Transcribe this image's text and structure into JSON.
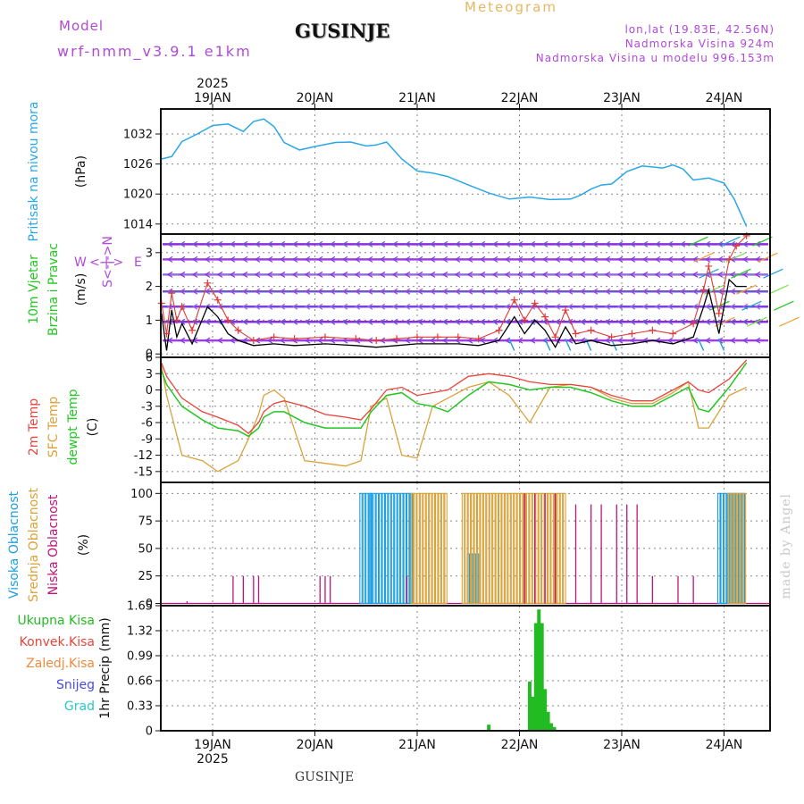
{
  "header": {
    "model_label": "Model",
    "model_name": "wrf-nmm_v3.9.1 e1km",
    "station": "GUSINJE",
    "title": "Meteogram",
    "lonlat": "lon,lat (19.83E, 42.56N)",
    "elevation": "Nadmorska Visina 924m",
    "model_elevation": "Nadmorska Visina u modelu 996.153m"
  },
  "footer": {
    "station": "GUSINJE",
    "watermark": "made by Angel"
  },
  "top_year": "2025",
  "bottom_year": "2025",
  "dates": [
    "19JAN",
    "20JAN",
    "21JAN",
    "22JAN",
    "23JAN",
    "24JAN"
  ],
  "colors": {
    "pressure": "#2aa7e6",
    "wind_speed": "#000000",
    "wind_gust": "#e03a3a",
    "t2m": "#e8453c",
    "tsfc": "#d9a23a",
    "dewpt": "#22c722",
    "high_cloud": "#1e9fe0",
    "mid_cloud": "#d9a23a",
    "low_cloud": "#c0147a",
    "precip_total": "#22bb22",
    "grid": "#888888"
  },
  "panel_labels": {
    "pressure": "Pritisak na nivou mora",
    "pressure_unit": "(hPa)",
    "wind_1": "10m Vjetar",
    "wind_2": "Brzina i Pravac",
    "wind_unit": "(m/s)",
    "compass_w": "W",
    "compass_e": "E",
    "compass_axis": "<-|->",
    "compass_ns": "S<-|->N",
    "temp_1": "2m Temp",
    "temp_2": "SFC Temp",
    "temp_3": "dewpt Temp",
    "temp_unit": "(C)",
    "cloud_1": "Visoka Oblacnost",
    "cloud_2": "Srednja Oblacnost",
    "cloud_3": "Niska Oblacnost",
    "cloud_unit": "(%)",
    "precip_unit": "1hr Precip (mm)"
  },
  "precip_legend": [
    "Ukupna Kisa",
    "Konvek.Kisa",
    "Zaledj.Kisa",
    "Snijeg",
    "Grad"
  ],
  "precip_legend_colors": [
    "#22bb22",
    "#e8453c",
    "#f08a3c",
    "#4a4ae8",
    "#2ac8c8"
  ],
  "chart_data": [
    {
      "type": "line",
      "name": "pressure",
      "x": [
        0.0,
        0.1,
        0.2,
        0.35,
        0.5,
        0.65,
        0.8,
        0.9,
        1.0,
        1.1,
        1.2,
        1.35,
        1.5,
        1.7,
        1.85,
        2.0,
        2.1,
        2.2,
        2.35,
        2.5,
        2.65,
        2.8,
        3.0,
        3.2,
        3.4,
        3.6,
        3.8,
        4.0,
        4.1,
        4.2,
        4.3,
        4.4,
        4.55,
        4.7,
        4.9,
        5.0,
        5.1,
        5.2,
        5.35,
        5.5,
        5.6,
        5.72
      ],
      "y": [
        1027,
        1027.5,
        1030.5,
        1032,
        1033.7,
        1034,
        1032.5,
        1034.5,
        1035,
        1033.5,
        1030.3,
        1028.8,
        1029.5,
        1030.3,
        1030.4,
        1029.6,
        1029.8,
        1030.4,
        1027,
        1024.6,
        1024.2,
        1023.5,
        1021.8,
        1020.2,
        1019,
        1019.4,
        1018.9,
        1019,
        1019.8,
        1021,
        1021.8,
        1022,
        1024.5,
        1025.6,
        1025.2,
        1025.8,
        1025,
        1022.8,
        1023.2,
        1022.2,
        1019,
        1013.5
      ],
      "ylabel": "(hPa)",
      "yticks": [
        1014,
        1020,
        1026,
        1032
      ],
      "ylim": [
        1012,
        1037
      ]
    },
    {
      "type": "line",
      "name": "wind",
      "x": [
        0.0,
        0.05,
        0.1,
        0.15,
        0.2,
        0.3,
        0.45,
        0.55,
        0.65,
        0.75,
        0.9,
        1.1,
        1.3,
        1.6,
        1.9,
        2.1,
        2.3,
        2.5,
        2.7,
        2.9,
        3.1,
        3.3,
        3.45,
        3.55,
        3.65,
        3.75,
        3.85,
        3.95,
        4.05,
        4.2,
        4.4,
        4.6,
        4.8,
        5.0,
        5.2,
        5.3,
        5.35,
        5.45,
        5.55,
        5.62,
        5.72
      ],
      "series": [
        {
          "name": "speed",
          "values": [
            1.2,
            0.1,
            1.3,
            0.5,
            0.9,
            0.3,
            1.4,
            1.1,
            0.6,
            0.4,
            0.25,
            0.3,
            0.25,
            0.3,
            0.25,
            0.2,
            0.25,
            0.3,
            0.3,
            0.3,
            0.25,
            0.4,
            1.1,
            0.6,
            1.0,
            0.7,
            0.2,
            0.8,
            0.3,
            0.4,
            0.25,
            0.3,
            0.4,
            0.3,
            0.5,
            1.4,
            1.9,
            0.6,
            2.2,
            2.0,
            2.0
          ]
        },
        {
          "name": "gust",
          "values": [
            1.5,
            0.6,
            1.8,
            1.0,
            1.4,
            0.7,
            2.1,
            1.6,
            1.0,
            0.7,
            0.4,
            0.5,
            0.45,
            0.5,
            0.45,
            0.4,
            0.45,
            0.5,
            0.5,
            0.5,
            0.45,
            0.7,
            1.6,
            1.0,
            1.5,
            1.1,
            0.5,
            1.3,
            0.6,
            0.7,
            0.5,
            0.6,
            0.7,
            0.6,
            0.9,
            1.9,
            2.6,
            1.2,
            2.8,
            3.2,
            3.5
          ]
        }
      ],
      "ylabel": "(m/s)",
      "yticks": [
        0,
        1,
        2,
        3
      ],
      "ylim": [
        -0.1,
        3.55
      ]
    },
    {
      "type": "line",
      "name": "temperature",
      "x": [
        0.0,
        0.05,
        0.2,
        0.4,
        0.55,
        0.75,
        0.85,
        0.95,
        1.0,
        1.1,
        1.2,
        1.4,
        1.6,
        1.8,
        1.95,
        2.05,
        2.2,
        2.35,
        2.5,
        2.65,
        2.8,
        3.0,
        3.2,
        3.4,
        3.6,
        3.8,
        4.0,
        4.2,
        4.4,
        4.6,
        4.8,
        5.0,
        5.15,
        5.25,
        5.35,
        5.55,
        5.72
      ],
      "series": [
        {
          "name": "t2m",
          "values": [
            5,
            2.5,
            -1.5,
            -4,
            -5,
            -6.5,
            -8,
            -6,
            -4,
            -2.5,
            -2,
            -3,
            -4.5,
            -5,
            -5.5,
            -3.5,
            0,
            0.5,
            -1,
            -0.5,
            0,
            2.5,
            3,
            2.5,
            1.5,
            1,
            1,
            0.5,
            -1,
            -2,
            -2,
            0,
            1.5,
            0,
            -0.5,
            2,
            5.5
          ]
        },
        {
          "name": "tsfc",
          "values": [
            4.5,
            -1,
            -12,
            -13,
            -15,
            -13,
            -9,
            -4.5,
            -1,
            0,
            -1.5,
            -13,
            -13.5,
            -14,
            -13,
            -3,
            -1.5,
            -12,
            -12.5,
            -3,
            -1.5,
            0.5,
            1.5,
            -1,
            -6,
            0.5,
            1,
            0.5,
            -1.5,
            -2.5,
            -2.5,
            -0.5,
            1.5,
            -7,
            -7,
            -1,
            0.5
          ]
        },
        {
          "name": "dewpt",
          "values": [
            3.5,
            1,
            -3,
            -5.5,
            -7,
            -7.5,
            -8.5,
            -7,
            -5,
            -4,
            -4,
            -6,
            -7,
            -7,
            -7,
            -4,
            -1,
            -0.5,
            -2.5,
            -3,
            -4,
            -1,
            1.5,
            1,
            0,
            0.5,
            0.5,
            -0.5,
            -2,
            -3,
            -3,
            -1,
            0.5,
            -3.5,
            -4,
            0.5,
            5
          ]
        }
      ],
      "ylabel": "(C)",
      "yticks": [
        -15,
        -12,
        -9,
        -6,
        -3,
        0,
        3,
        6
      ],
      "ylim": [
        -17,
        6
      ]
    },
    {
      "type": "bar",
      "name": "cloud",
      "series": [
        {
          "name": "high",
          "segments": [
            [
              1.95,
              2.05,
              100
            ],
            [
              2.05,
              2.45,
              100
            ],
            [
              3.0,
              3.1,
              45
            ],
            [
              5.45,
              5.72,
              100
            ]
          ]
        },
        {
          "name": "mid",
          "segments": [
            [
              2.45,
              2.8,
              100
            ],
            [
              2.95,
              3.95,
              100
            ],
            [
              5.55,
              5.72,
              100
            ]
          ]
        },
        {
          "name": "low",
          "spikes": [
            [
              0.25,
              2
            ],
            [
              0.7,
              25
            ],
            [
              0.8,
              25
            ],
            [
              0.9,
              25
            ],
            [
              0.95,
              25
            ],
            [
              1.55,
              25
            ],
            [
              1.6,
              25
            ],
            [
              1.65,
              25
            ],
            [
              2.4,
              25
            ],
            [
              3.55,
              100
            ],
            [
              3.65,
              100
            ],
            [
              3.75,
              100
            ],
            [
              3.85,
              100
            ],
            [
              4.05,
              90
            ],
            [
              4.2,
              90
            ],
            [
              4.3,
              90
            ],
            [
              4.45,
              90
            ],
            [
              4.55,
              90
            ],
            [
              4.65,
              90
            ],
            [
              4.8,
              25
            ],
            [
              5.05,
              25
            ],
            [
              5.2,
              25
            ]
          ]
        }
      ],
      "ylabel": "(%)",
      "yticks": [
        0,
        25,
        50,
        75,
        100
      ],
      "ylim": [
        -2,
        110
      ]
    },
    {
      "type": "bar",
      "name": "precipitation",
      "x": [
        3.2,
        3.6,
        3.63,
        3.66,
        3.69,
        3.72,
        3.75,
        3.78,
        3.81,
        3.84
      ],
      "values": [
        0.08,
        0.65,
        0.45,
        1.42,
        1.6,
        1.42,
        0.55,
        0.25,
        0.1,
        0.05
      ],
      "ylabel": "1hr Precip (mm)",
      "ytick_labels": [
        "0",
        "0.33",
        "0.66",
        "0.99",
        "1.32",
        "1.65"
      ],
      "ylim": [
        0,
        1.65
      ]
    }
  ]
}
